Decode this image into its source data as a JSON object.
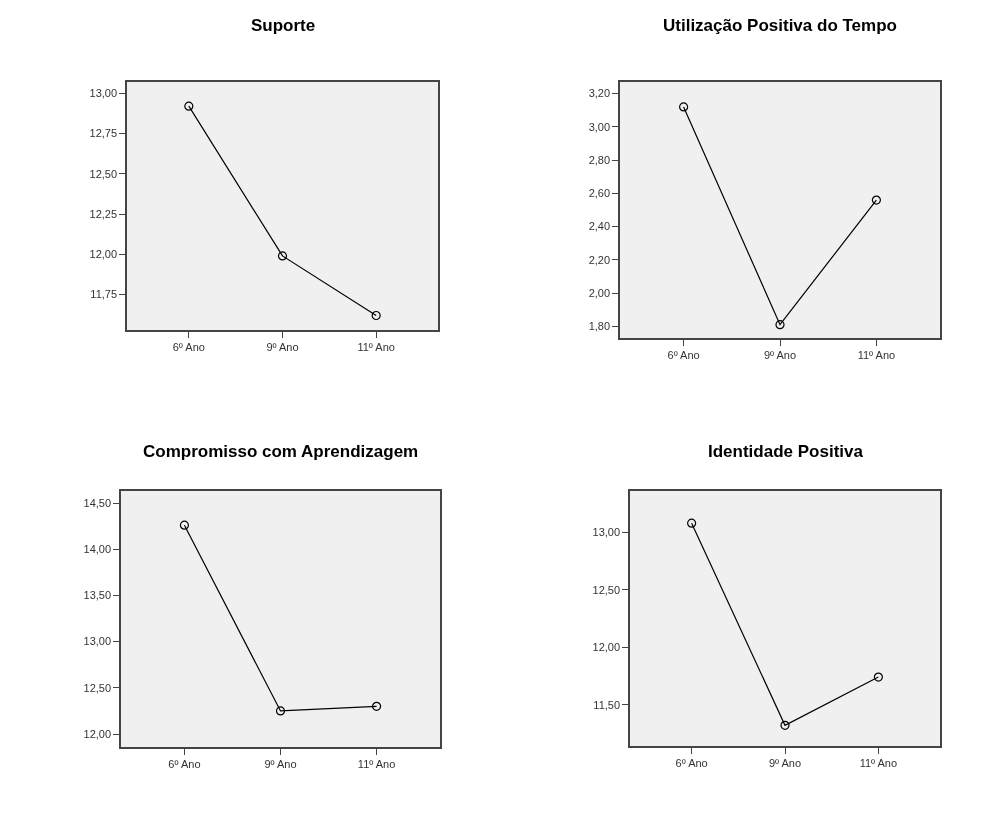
{
  "chart_data": [
    {
      "type": "line",
      "title": "Suporte",
      "categories": [
        "6º Ano",
        "9º Ano",
        "11º Ano"
      ],
      "values": [
        12.92,
        11.99,
        11.62
      ],
      "color": "#000000",
      "marker": "circle",
      "ylim": [
        11.53,
        13.07
      ],
      "yticks": [
        {
          "value": 11.75,
          "label": "11,75"
        },
        {
          "value": 12.0,
          "label": "12,00"
        },
        {
          "value": 12.25,
          "label": "12,25"
        },
        {
          "value": 12.5,
          "label": "12,50"
        },
        {
          "value": 12.75,
          "label": "12,75"
        },
        {
          "value": 13.0,
          "label": "13,00"
        }
      ]
    },
    {
      "type": "line",
      "title": "Utilização Positiva do Tempo",
      "categories": [
        "6º Ano",
        "9º Ano",
        "11º Ano"
      ],
      "values": [
        3.12,
        1.81,
        2.56
      ],
      "color": "#000000",
      "marker": "circle",
      "ylim": [
        1.73,
        3.27
      ],
      "yticks": [
        {
          "value": 1.8,
          "label": "1,80"
        },
        {
          "value": 2.0,
          "label": "2,00"
        },
        {
          "value": 2.2,
          "label": "2,20"
        },
        {
          "value": 2.4,
          "label": "2,40"
        },
        {
          "value": 2.6,
          "label": "2,60"
        },
        {
          "value": 2.8,
          "label": "2,80"
        },
        {
          "value": 3.0,
          "label": "3,00"
        },
        {
          "value": 3.2,
          "label": "3,20"
        }
      ]
    },
    {
      "type": "line",
      "title": "Compromisso com Aprendizagem",
      "categories": [
        "6º Ano",
        "9º Ano",
        "11º Ano"
      ],
      "values": [
        14.26,
        12.25,
        12.3
      ],
      "color": "#000000",
      "marker": "circle",
      "ylim": [
        11.86,
        14.63
      ],
      "yticks": [
        {
          "value": 12.0,
          "label": "12,00"
        },
        {
          "value": 12.5,
          "label": "12,50"
        },
        {
          "value": 13.0,
          "label": "13,00"
        },
        {
          "value": 13.5,
          "label": "13,50"
        },
        {
          "value": 14.0,
          "label": "14,00"
        },
        {
          "value": 14.5,
          "label": "14,50"
        }
      ]
    },
    {
      "type": "line",
      "title": "Identidade Positiva",
      "categories": [
        "6º Ano",
        "9º Ano",
        "11º Ano"
      ],
      "values": [
        13.08,
        11.32,
        11.74
      ],
      "color": "#000000",
      "marker": "circle",
      "ylim": [
        11.14,
        13.36
      ],
      "yticks": [
        {
          "value": 11.5,
          "label": "11,50"
        },
        {
          "value": 12.0,
          "label": "12,00"
        },
        {
          "value": 12.5,
          "label": "12,50"
        },
        {
          "value": 13.0,
          "label": "13,00"
        }
      ]
    }
  ]
}
